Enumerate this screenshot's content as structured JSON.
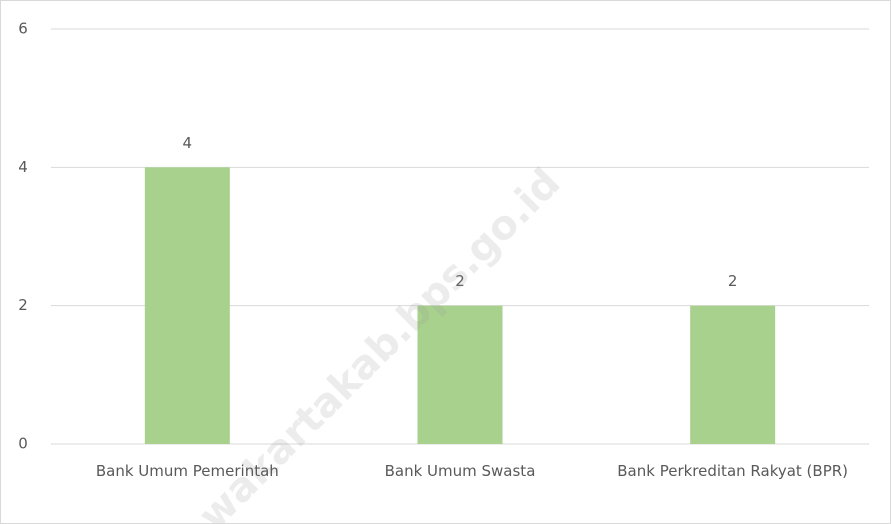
{
  "chart_data": {
    "type": "bar",
    "categories": [
      "Bank Umum Pemerintah",
      "Bank Umum Swasta",
      "Bank Perkreditan Rakyat (BPR)"
    ],
    "values": [
      4,
      2,
      2
    ],
    "color": "#a9d18e",
    "ylim": [
      0,
      6
    ],
    "yticks": [
      0,
      2,
      4,
      6
    ],
    "grid": true,
    "annotations": [
      "wakartakab.bps.go.id"
    ]
  }
}
